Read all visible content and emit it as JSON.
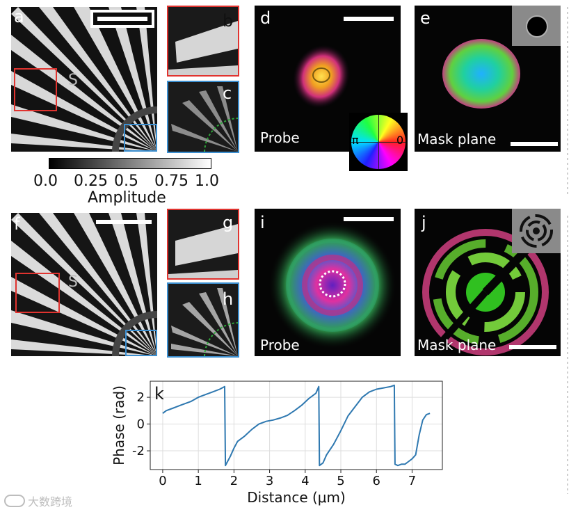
{
  "panels": {
    "a": {
      "label": "a"
    },
    "b": {
      "label": "b"
    },
    "c": {
      "label": "c"
    },
    "d": {
      "label": "d",
      "caption": "Probe"
    },
    "e": {
      "label": "e",
      "caption": "Mask plane"
    },
    "f": {
      "label": "f"
    },
    "g": {
      "label": "g"
    },
    "h": {
      "label": "h"
    },
    "i": {
      "label": "i",
      "caption": "Probe"
    },
    "j": {
      "label": "j",
      "caption": "Mask plane"
    }
  },
  "colorbar": {
    "ticks": [
      "0.0",
      "0.25",
      "0.5",
      "0.75",
      "1.0"
    ],
    "label": "Amplitude"
  },
  "phase_wheel": {
    "left_label": "π",
    "right_label": "0"
  },
  "colors": {
    "red_box": "#e0332f",
    "blue_box": "#3c8fd0",
    "green_dots": "#2ea83a",
    "line": "#2e78b0"
  },
  "watermark": "大数跨境",
  "chart_data": {
    "type": "line",
    "label": "k",
    "xlabel": "Distance (μm)",
    "ylabel": "Phase (rad)",
    "xlim": [
      -0.35,
      7.85
    ],
    "ylim": [
      -3.4,
      3.2
    ],
    "xticks": [
      0,
      1,
      2,
      3,
      4,
      5,
      6,
      7
    ],
    "yticks": [
      -2,
      0,
      2
    ],
    "grid": true,
    "series": [
      {
        "x": [
          0,
          0.1,
          0.3,
          0.5,
          0.8,
          1.0,
          1.2,
          1.4,
          1.6,
          1.74,
          1.76,
          1.8,
          1.9,
          2.0,
          2.1,
          2.3,
          2.5,
          2.7,
          2.9,
          3.1,
          3.3,
          3.5,
          3.7,
          3.9,
          4.1,
          4.3,
          4.38,
          4.4,
          4.5,
          4.6,
          4.8,
          5.0,
          5.2,
          5.4,
          5.6,
          5.8,
          6.0,
          6.2,
          6.4,
          6.5,
          6.52,
          6.6,
          6.7,
          6.8,
          6.9,
          7.0,
          7.1,
          7.2,
          7.3,
          7.4,
          7.5
        ],
        "y": [
          0.8,
          1.0,
          1.2,
          1.4,
          1.7,
          2.0,
          2.2,
          2.4,
          2.6,
          2.8,
          -3.1,
          -2.9,
          -2.4,
          -1.8,
          -1.3,
          -0.9,
          -0.4,
          0.0,
          0.2,
          0.3,
          0.45,
          0.65,
          1.0,
          1.4,
          1.9,
          2.3,
          2.8,
          -3.1,
          -2.9,
          -2.3,
          -1.5,
          -0.5,
          0.6,
          1.3,
          2.0,
          2.4,
          2.6,
          2.7,
          2.8,
          2.9,
          -3.0,
          -3.1,
          -3.0,
          -3.0,
          -2.8,
          -2.6,
          -2.3,
          -0.8,
          0.3,
          0.7,
          0.8
        ]
      }
    ]
  }
}
